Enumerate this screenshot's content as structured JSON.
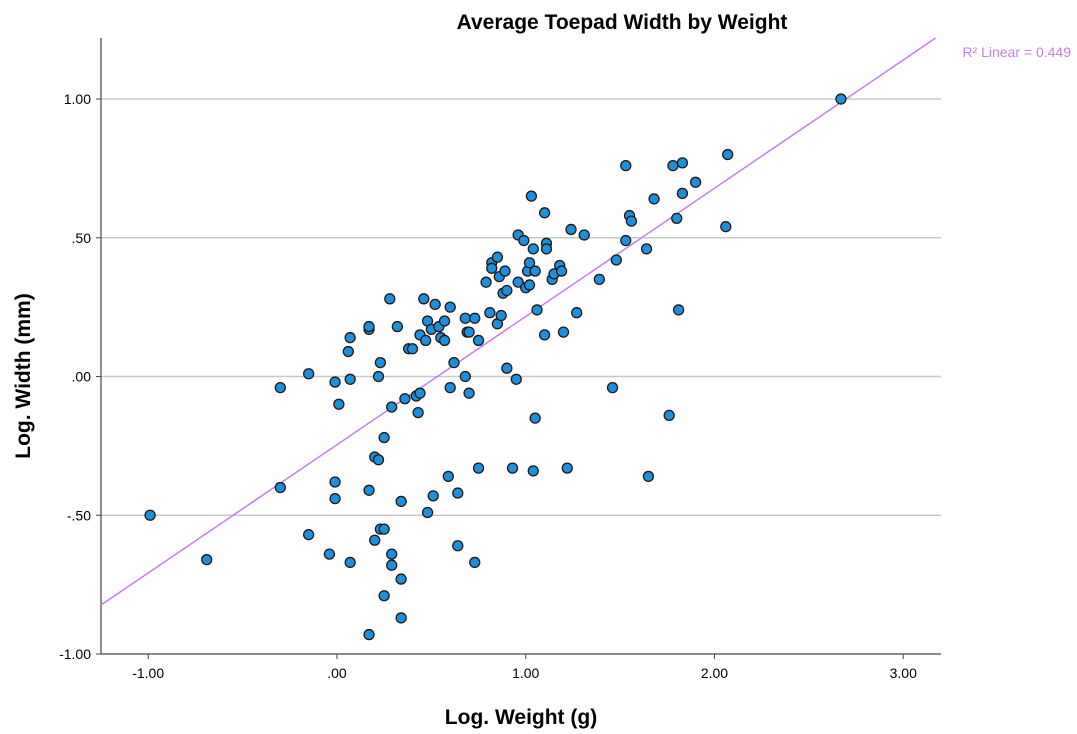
{
  "chart_data": {
    "type": "scatter",
    "title": "Average Toepad Width by Weight",
    "xlabel": "Log. Weight (g)",
    "ylabel": "Log. Width (mm)",
    "xlim": [
      -1.25,
      3.2
    ],
    "ylim": [
      -1.0,
      1.22
    ],
    "xticks": [
      -1.0,
      0.0,
      1.0,
      2.0,
      3.0
    ],
    "xtick_labels": [
      "-1.00",
      ".00",
      "1.00",
      "2.00",
      "3.00"
    ],
    "yticks": [
      -1.0,
      -0.5,
      0.0,
      0.5,
      1.0
    ],
    "ytick_labels": [
      "-1.00",
      "-.50",
      ".00",
      ".50",
      "1.00"
    ],
    "grid": "horizontal",
    "point_color": "#1f8fdc",
    "point_edge_color": "#1a1a1a",
    "fit_line": {
      "label": "R² Linear = 0.449",
      "color": "#c77ee8",
      "slope": 0.4622,
      "intercept": -0.2458
    },
    "points": [
      {
        "x": -0.99,
        "y": -0.5
      },
      {
        "x": -0.69,
        "y": -0.66
      },
      {
        "x": -0.3,
        "y": -0.04
      },
      {
        "x": -0.3,
        "y": -0.4
      },
      {
        "x": -0.15,
        "y": 0.01
      },
      {
        "x": -0.15,
        "y": -0.57
      },
      {
        "x": -0.04,
        "y": -0.64
      },
      {
        "x": -0.01,
        "y": -0.38
      },
      {
        "x": -0.01,
        "y": -0.44
      },
      {
        "x": -0.01,
        "y": -0.02
      },
      {
        "x": 0.01,
        "y": -0.1
      },
      {
        "x": 0.06,
        "y": 0.09
      },
      {
        "x": 0.07,
        "y": 0.14
      },
      {
        "x": 0.07,
        "y": -0.01
      },
      {
        "x": 0.07,
        "y": -0.67
      },
      {
        "x": 0.17,
        "y": 0.17
      },
      {
        "x": 0.17,
        "y": 0.18
      },
      {
        "x": 0.17,
        "y": -0.41
      },
      {
        "x": 0.17,
        "y": -0.93
      },
      {
        "x": 0.2,
        "y": -0.29
      },
      {
        "x": 0.2,
        "y": -0.59
      },
      {
        "x": 0.22,
        "y": -0.3
      },
      {
        "x": 0.22,
        "y": 0.0
      },
      {
        "x": 0.23,
        "y": 0.05
      },
      {
        "x": 0.23,
        "y": -0.55
      },
      {
        "x": 0.25,
        "y": -0.55
      },
      {
        "x": 0.25,
        "y": -0.22
      },
      {
        "x": 0.25,
        "y": -0.79
      },
      {
        "x": 0.28,
        "y": 0.28
      },
      {
        "x": 0.29,
        "y": -0.64
      },
      {
        "x": 0.29,
        "y": -0.68
      },
      {
        "x": 0.29,
        "y": -0.11
      },
      {
        "x": 0.32,
        "y": 0.18
      },
      {
        "x": 0.34,
        "y": -0.45
      },
      {
        "x": 0.34,
        "y": -0.73
      },
      {
        "x": 0.34,
        "y": -0.87
      },
      {
        "x": 0.36,
        "y": -0.08
      },
      {
        "x": 0.38,
        "y": 0.1
      },
      {
        "x": 0.4,
        "y": 0.1
      },
      {
        "x": 0.42,
        "y": -0.07
      },
      {
        "x": 0.43,
        "y": -0.13
      },
      {
        "x": 0.44,
        "y": 0.15
      },
      {
        "x": 0.44,
        "y": -0.06
      },
      {
        "x": 0.46,
        "y": 0.28
      },
      {
        "x": 0.47,
        "y": 0.13
      },
      {
        "x": 0.48,
        "y": 0.2
      },
      {
        "x": 0.48,
        "y": -0.49
      },
      {
        "x": 0.5,
        "y": 0.17
      },
      {
        "x": 0.51,
        "y": -0.43
      },
      {
        "x": 0.52,
        "y": 0.26
      },
      {
        "x": 0.54,
        "y": 0.18
      },
      {
        "x": 0.55,
        "y": 0.14
      },
      {
        "x": 0.57,
        "y": 0.13
      },
      {
        "x": 0.57,
        "y": 0.2
      },
      {
        "x": 0.59,
        "y": -0.36
      },
      {
        "x": 0.6,
        "y": -0.04
      },
      {
        "x": 0.6,
        "y": 0.25
      },
      {
        "x": 0.62,
        "y": 0.05
      },
      {
        "x": 0.64,
        "y": -0.42
      },
      {
        "x": 0.64,
        "y": -0.61
      },
      {
        "x": 0.68,
        "y": 0.21
      },
      {
        "x": 0.68,
        "y": 0.0
      },
      {
        "x": 0.69,
        "y": 0.16
      },
      {
        "x": 0.7,
        "y": 0.16
      },
      {
        "x": 0.7,
        "y": -0.06
      },
      {
        "x": 0.73,
        "y": 0.21
      },
      {
        "x": 0.73,
        "y": -0.67
      },
      {
        "x": 0.75,
        "y": -0.33
      },
      {
        "x": 0.75,
        "y": 0.13
      },
      {
        "x": 0.79,
        "y": 0.34
      },
      {
        "x": 0.81,
        "y": 0.23
      },
      {
        "x": 0.82,
        "y": 0.41
      },
      {
        "x": 0.82,
        "y": 0.39
      },
      {
        "x": 0.85,
        "y": 0.43
      },
      {
        "x": 0.85,
        "y": 0.19
      },
      {
        "x": 0.86,
        "y": 0.36
      },
      {
        "x": 0.87,
        "y": 0.22
      },
      {
        "x": 0.88,
        "y": 0.3
      },
      {
        "x": 0.89,
        "y": 0.38
      },
      {
        "x": 0.9,
        "y": 0.03
      },
      {
        "x": 0.9,
        "y": 0.31
      },
      {
        "x": 0.93,
        "y": -0.33
      },
      {
        "x": 0.95,
        "y": -0.01
      },
      {
        "x": 0.96,
        "y": 0.51
      },
      {
        "x": 0.96,
        "y": 0.34
      },
      {
        "x": 0.99,
        "y": 0.49
      },
      {
        "x": 1.0,
        "y": 0.32
      },
      {
        "x": 1.01,
        "y": 0.38
      },
      {
        "x": 1.02,
        "y": 0.41
      },
      {
        "x": 1.02,
        "y": 0.33
      },
      {
        "x": 1.03,
        "y": 0.65
      },
      {
        "x": 1.04,
        "y": 0.46
      },
      {
        "x": 1.04,
        "y": -0.34
      },
      {
        "x": 1.05,
        "y": -0.15
      },
      {
        "x": 1.05,
        "y": 0.38
      },
      {
        "x": 1.06,
        "y": 0.24
      },
      {
        "x": 1.1,
        "y": 0.15
      },
      {
        "x": 1.1,
        "y": 0.59
      },
      {
        "x": 1.11,
        "y": 0.48
      },
      {
        "x": 1.11,
        "y": 0.46
      },
      {
        "x": 1.14,
        "y": 0.35
      },
      {
        "x": 1.15,
        "y": 0.37
      },
      {
        "x": 1.18,
        "y": 0.4
      },
      {
        "x": 1.19,
        "y": 0.38
      },
      {
        "x": 1.2,
        "y": 0.16
      },
      {
        "x": 1.22,
        "y": -0.33
      },
      {
        "x": 1.24,
        "y": 0.53
      },
      {
        "x": 1.27,
        "y": 0.23
      },
      {
        "x": 1.31,
        "y": 0.51
      },
      {
        "x": 1.39,
        "y": 0.35
      },
      {
        "x": 1.46,
        "y": -0.04
      },
      {
        "x": 1.48,
        "y": 0.42
      },
      {
        "x": 1.53,
        "y": 0.49
      },
      {
        "x": 1.53,
        "y": 0.76
      },
      {
        "x": 1.55,
        "y": 0.58
      },
      {
        "x": 1.56,
        "y": 0.56
      },
      {
        "x": 1.64,
        "y": 0.46
      },
      {
        "x": 1.65,
        "y": -0.36
      },
      {
        "x": 1.68,
        "y": 0.64
      },
      {
        "x": 1.76,
        "y": -0.14
      },
      {
        "x": 1.78,
        "y": 0.76
      },
      {
        "x": 1.8,
        "y": 0.57
      },
      {
        "x": 1.81,
        "y": 0.24
      },
      {
        "x": 1.83,
        "y": 0.77
      },
      {
        "x": 1.83,
        "y": 0.66
      },
      {
        "x": 1.9,
        "y": 0.7
      },
      {
        "x": 2.06,
        "y": 0.54
      },
      {
        "x": 2.07,
        "y": 0.8
      },
      {
        "x": 2.67,
        "y": 1.0
      }
    ]
  }
}
